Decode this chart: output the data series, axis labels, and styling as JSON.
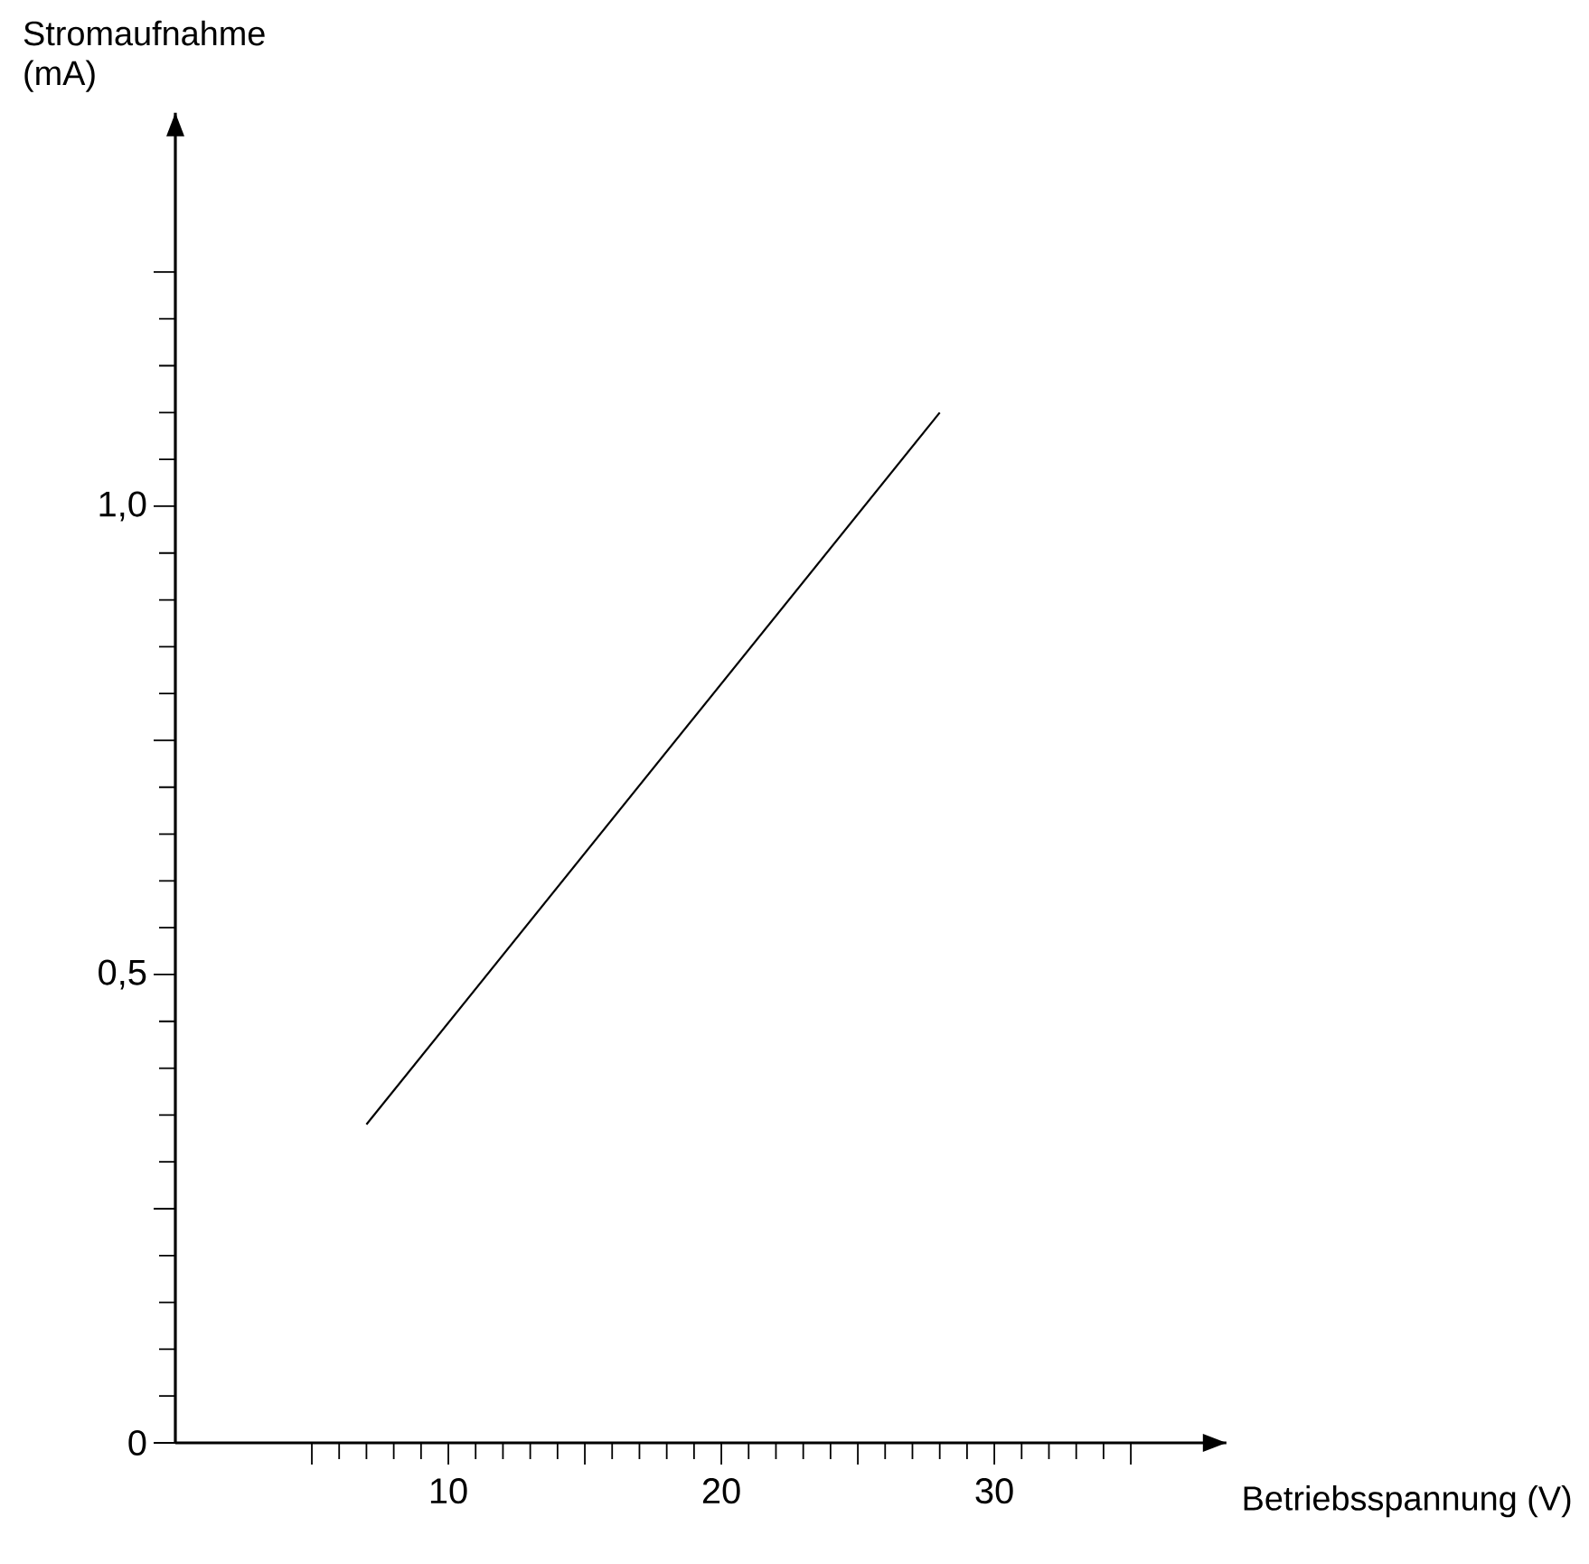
{
  "chart_data": {
    "type": "line",
    "xlabel": "Betriebsspannung   (V)",
    "ylabel": "Stromaufnahme\n(mA)",
    "x": [
      7,
      28
    ],
    "series": [
      {
        "color": "#000000",
        "values": [
          0.34,
          1.1
        ]
      }
    ],
    "xlim": [
      0,
      38.5
    ],
    "ylim": [
      0,
      1.42
    ],
    "xticks": [
      {
        "value": 5,
        "label": null
      },
      10,
      {
        "value": 15,
        "label": null
      },
      20,
      {
        "value": 25,
        "label": null
      },
      30,
      {
        "value": 35,
        "label": null
      }
    ],
    "yticks": [
      0,
      {
        "value": 0.25,
        "label": null
      },
      {
        "value": 0.5,
        "label": "0,5"
      },
      {
        "value": 0.75,
        "label": null
      },
      {
        "value": 1.0,
        "label": "1,0"
      },
      {
        "value": 1.25,
        "label": null
      }
    ],
    "marker": "none",
    "line_style": "solid"
  }
}
